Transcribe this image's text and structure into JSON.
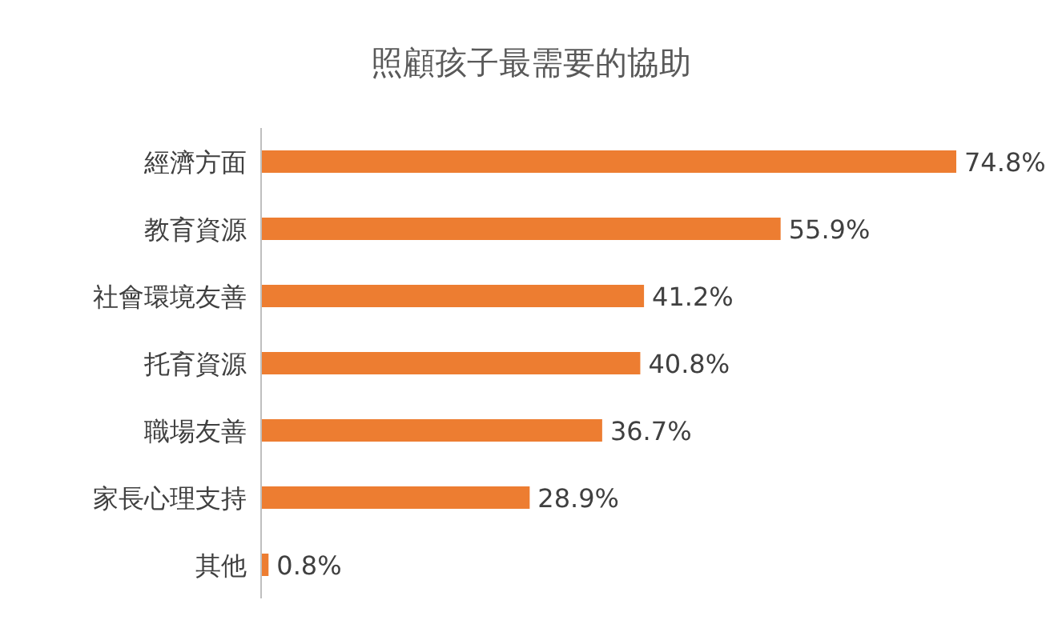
{
  "chart_data": {
    "type": "bar",
    "orientation": "horizontal",
    "title": "照顧孩子最需要的協助",
    "categories": [
      "經濟方面",
      "教育資源",
      "社會環境友善",
      "托育資源",
      "職場友善",
      "家長心理支持",
      "其他"
    ],
    "values": [
      74.8,
      55.9,
      41.2,
      40.8,
      36.7,
      28.9,
      0.8
    ],
    "value_labels": [
      "74.8%",
      "55.9%",
      "41.2%",
      "40.8%",
      "36.7%",
      "28.9%",
      "0.8%"
    ],
    "color": "#ed7d31"
  }
}
